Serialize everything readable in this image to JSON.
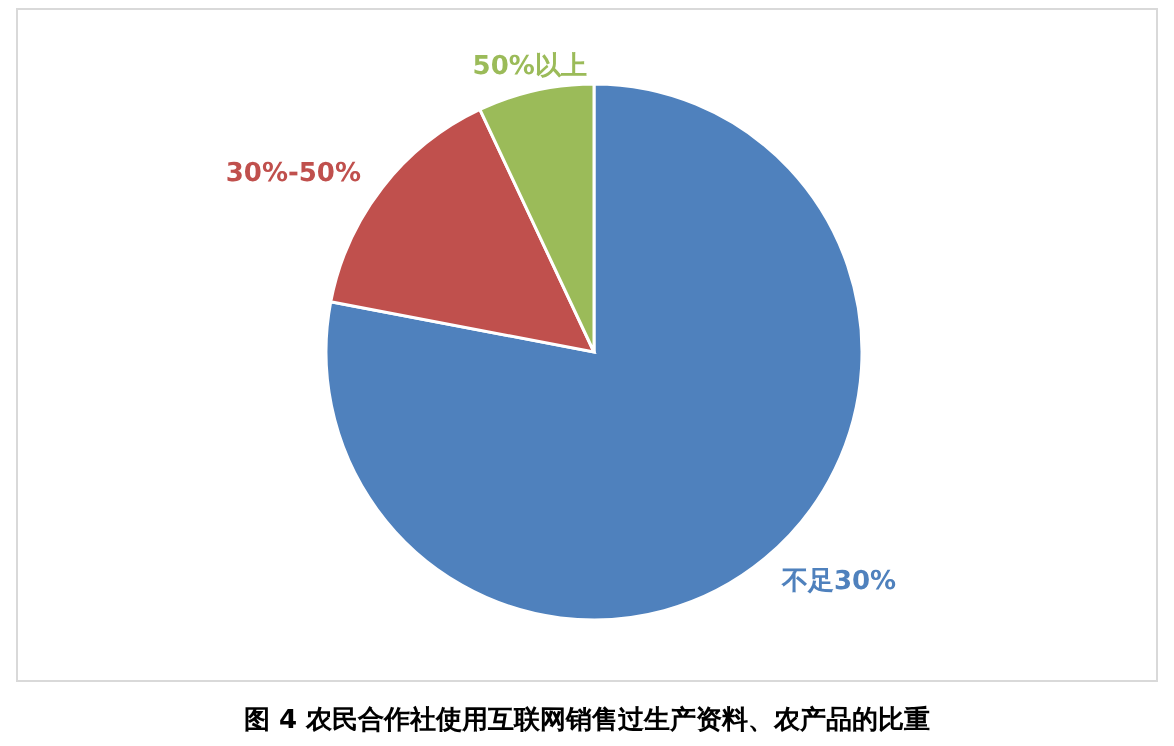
{
  "chart_data": {
    "type": "pie",
    "categories": [
      "不足30%",
      "30%-50%",
      "50%以上"
    ],
    "values": [
      78,
      15,
      7
    ],
    "colors": [
      "#4f81bd",
      "#c0504d",
      "#9bbb59"
    ],
    "annotations": [
      "图 4  农民合作社使用互联网销售过生产资料、农产品的比重"
    ]
  }
}
